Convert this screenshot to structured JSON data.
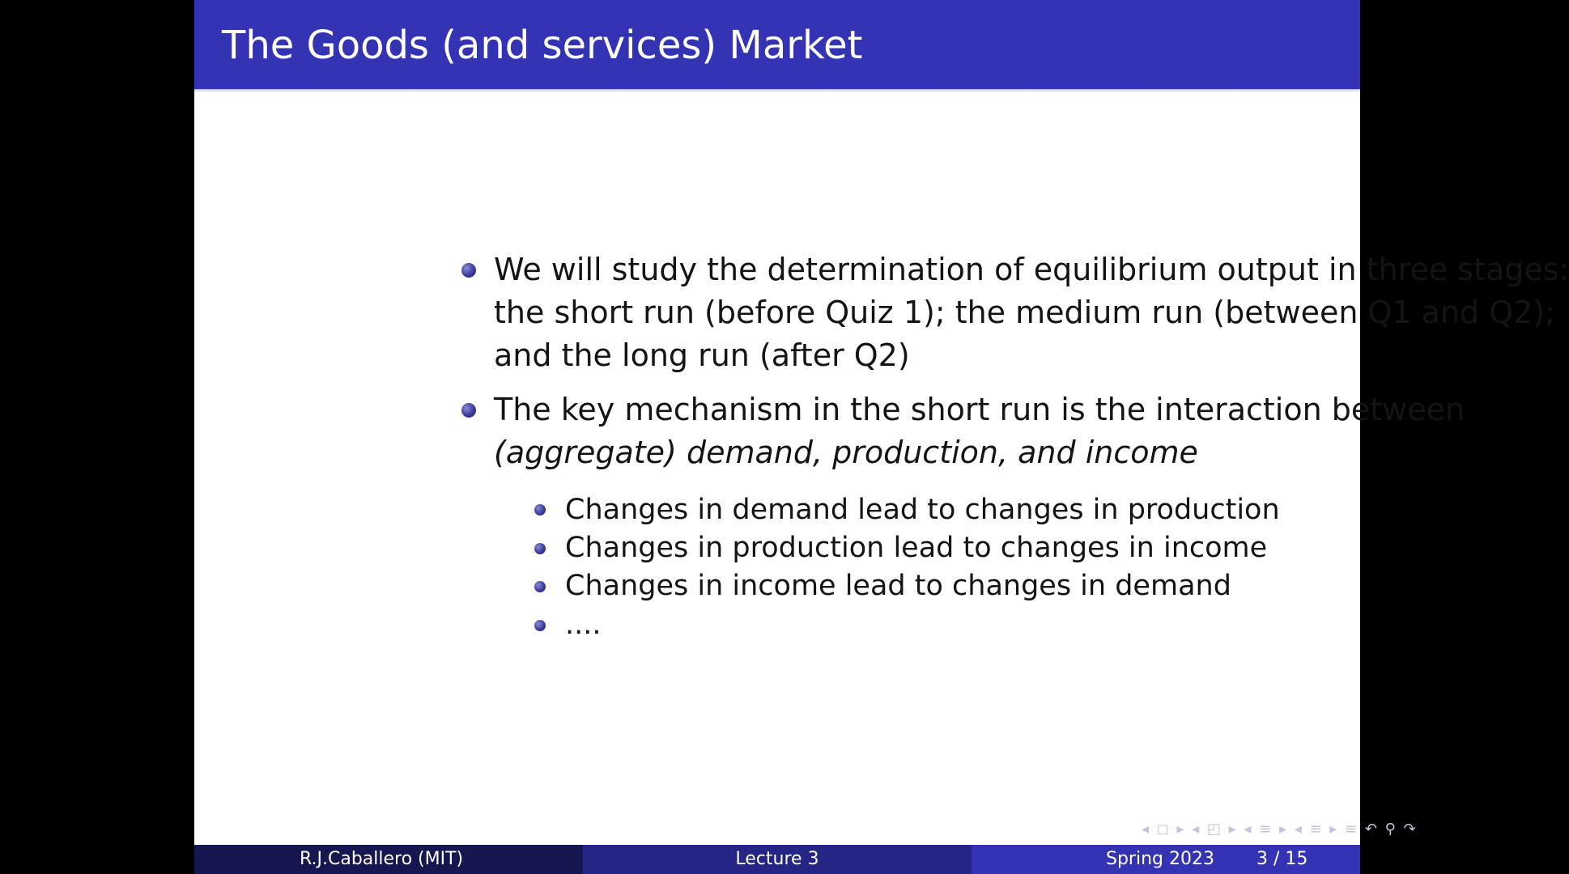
{
  "slide": {
    "title": "The Goods (and services) Market",
    "bullets": [
      {
        "lines": [
          "We will study the determination of equilibrium output in three stages:",
          "the short run (before Quiz 1); the medium run (between Q1 and Q2);",
          "and the long run (after Q2)"
        ]
      },
      {
        "line1": "The key mechanism in the short run is the interaction between",
        "line2_italic": "(aggregate) demand, production, and income"
      }
    ],
    "subbullets": [
      "Changes in demand lead to changes in production",
      "Changes in production lead to changes in income",
      "Changes in income lead to changes in demand",
      "...."
    ],
    "nav_symbols": "◂ ◻ ▸ ◂ ◰ ▸ ◂ ≡ ▸ ◂ ≡ ▸ ≡ ↶ ⚲ ↷"
  },
  "footer": {
    "author": "R.J.Caballero (MIT)",
    "lecture": "Lecture 3",
    "date": "Spring 2023",
    "page": "3 / 15"
  },
  "colors": {
    "title_bar": "#3333b3",
    "footer_left": "#161650",
    "footer_middle": "#252585",
    "footer_right": "#3333b3"
  }
}
